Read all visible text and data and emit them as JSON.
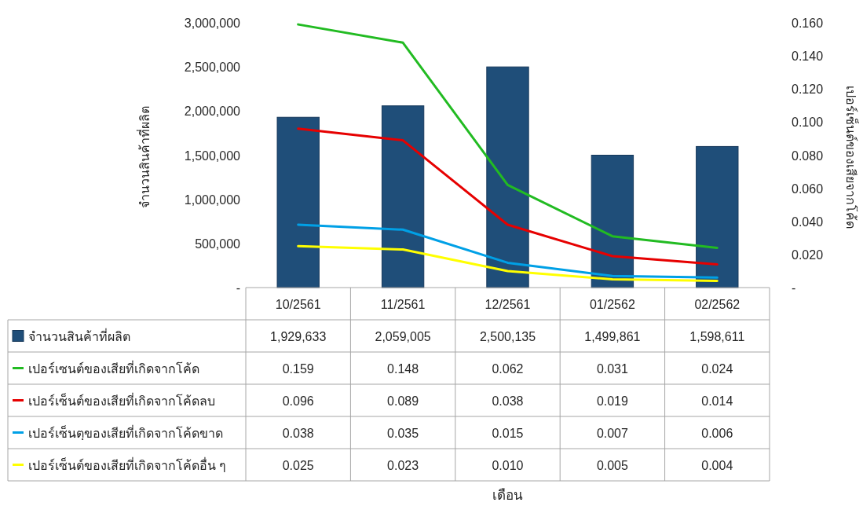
{
  "chart_data": {
    "type": "bar",
    "annotations": [
      "เดือน"
    ],
    "ylabel": "จำนวนสินค้าที่ผลิต",
    "y2label": "เปอร์เซ็นต์ของเสียจากโค้ด",
    "categories": [
      "10/2561",
      "11/2561",
      "12/2561",
      "01/2562",
      "02/2562"
    ],
    "ylim": [
      0,
      3000000
    ],
    "yticks": [
      {
        "value": 0,
        "label": "-"
      },
      {
        "value": 500000,
        "label": "500,000"
      },
      {
        "value": 1000000,
        "label": "1,000,000"
      },
      {
        "value": 1500000,
        "label": "1,500,000"
      },
      {
        "value": 2000000,
        "label": "2,000,000"
      },
      {
        "value": 2500000,
        "label": "2,500,000"
      },
      {
        "value": 3000000,
        "label": "3,000,000"
      }
    ],
    "y2lim": [
      0,
      0.16
    ],
    "y2ticks": [
      {
        "value": 0,
        "label": "-"
      },
      {
        "value": 0.02,
        "label": "0.020"
      },
      {
        "value": 0.04,
        "label": "0.040"
      },
      {
        "value": 0.06,
        "label": "0.060"
      },
      {
        "value": 0.08,
        "label": "0.080"
      },
      {
        "value": 0.1,
        "label": "0.100"
      },
      {
        "value": 0.12,
        "label": "0.120"
      },
      {
        "value": 0.14,
        "label": "0.140"
      },
      {
        "value": 0.16,
        "label": "0.160"
      }
    ],
    "legend": "bottom",
    "series": [
      {
        "name": "จำนวนสินค้าที่ผลิต",
        "color": "#1f4e79",
        "values": [
          1929633,
          2059005,
          2500135,
          1499861,
          1598611
        ],
        "value_labels": [
          "1,929,633",
          "2,059,005",
          "2,500,135",
          "1,499,861",
          "1,598,611"
        ]
      },
      {
        "name": "เปอร์เซนต์ของเสียที่เกิดจากโค้ด",
        "type": "line",
        "axis": "y2",
        "color": "#22bb22",
        "values": [
          0.159,
          0.148,
          0.062,
          0.031,
          0.024
        ],
        "value_labels": [
          "0.159",
          "0.148",
          "0.062",
          "0.031",
          "0.024"
        ]
      },
      {
        "name": "เปอร์เซ็นต์ของเสียที่เกิดจากโค้ดลบ",
        "type": "line",
        "axis": "y2",
        "color": "#e60000",
        "values": [
          0.096,
          0.089,
          0.038,
          0.019,
          0.014
        ],
        "value_labels": [
          "0.096",
          "0.089",
          "0.038",
          "0.019",
          "0.014"
        ]
      },
      {
        "name": "เปอร์เซ็นตฺของเสียที่เกิดจากโค้ดขาด",
        "type": "line",
        "axis": "y2",
        "color": "#00a0e6",
        "values": [
          0.038,
          0.035,
          0.015,
          0.007,
          0.006
        ],
        "value_labels": [
          "0.038",
          "0.035",
          "0.015",
          "0.007",
          "0.006"
        ]
      },
      {
        "name": "เปอร์เซ็นต์ของเสียที่เกิดจากโค้ดอื่น ๆ",
        "type": "line",
        "axis": "y2",
        "color": "#ffff00",
        "values": [
          0.025,
          0.023,
          0.01,
          0.005,
          0.004
        ],
        "value_labels": [
          "0.025",
          "0.023",
          "0.010",
          "0.005",
          "0.004"
        ]
      }
    ]
  }
}
